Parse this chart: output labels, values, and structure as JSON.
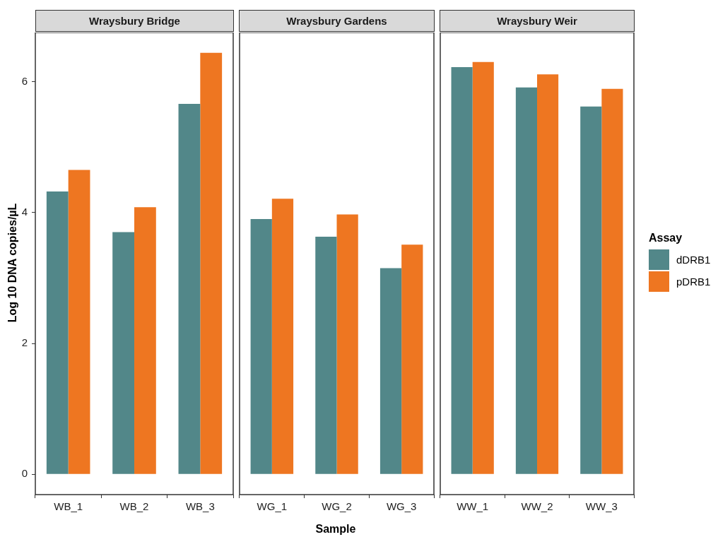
{
  "chart_data": [
    {
      "type": "bar",
      "title": "Wraysbury Bridge",
      "ylabel": "Log 10 DNA copies/µL",
      "categories": [
        "WB_1",
        "WB_2",
        "WB_3"
      ],
      "series": [
        {
          "color": "#528789",
          "values": [
            4.32,
            3.7,
            5.66
          ]
        },
        {
          "color": "#ee7621",
          "values": [
            4.65,
            4.08,
            6.44
          ]
        }
      ],
      "ylim": [
        -0.31,
        6.75
      ],
      "yticks": [
        0,
        2,
        4,
        6
      ],
      "grid": false,
      "legend": false
    },
    {
      "type": "bar",
      "title": "Wraysbury Gardens",
      "xlabel": "Sample",
      "categories": [
        "WG_1",
        "WG_2",
        "WG_3"
      ],
      "series": [
        {
          "color": "#528789",
          "values": [
            3.9,
            3.63,
            3.15
          ]
        },
        {
          "color": "#ee7621",
          "values": [
            4.21,
            3.97,
            3.51
          ]
        }
      ],
      "ylim": [
        -0.31,
        6.75
      ],
      "yticks": [
        0,
        2,
        4,
        6
      ],
      "tick_labels": "x",
      "grid": false,
      "legend": false
    },
    {
      "type": "bar",
      "title": "Wraysbury Weir",
      "legend_title": "Assay",
      "categories": [
        "WW_1",
        "WW_2",
        "WW_3"
      ],
      "series": [
        {
          "name": "dDRB1",
          "color": "#528789",
          "values": [
            6.22,
            5.91,
            5.62
          ]
        },
        {
          "name": "pDRB1",
          "color": "#ee7621",
          "values": [
            6.3,
            6.11,
            5.89
          ]
        }
      ],
      "ylim": [
        -0.31,
        6.75
      ],
      "yticks": [
        0,
        2,
        4,
        6
      ],
      "tick_labels": "x",
      "grid": false,
      "legend": "right"
    }
  ]
}
